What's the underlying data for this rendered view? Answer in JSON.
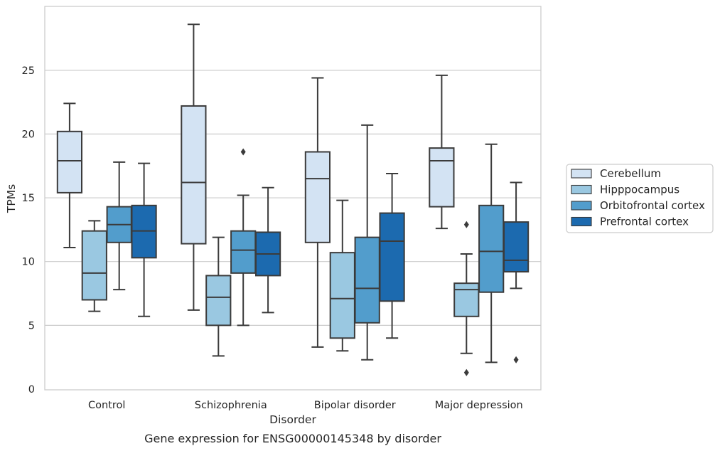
{
  "caption": "Gene expression for ENSG00000145348 by disorder",
  "chart_data": {
    "type": "box",
    "title": "",
    "xlabel": "Disorder",
    "ylabel": "TPMs",
    "ylim": [
      0,
      30
    ],
    "yticks": [
      0,
      5,
      10,
      15,
      20,
      25
    ],
    "grid": "horizontal",
    "legend_position": "right-outside",
    "categories": [
      "Control",
      "Schizophrenia",
      "Bipolar disorder",
      "Major depression"
    ],
    "series": [
      {
        "name": "Cerebellum",
        "color": "#d3e3f3",
        "boxes": [
          {
            "whislo": 11.1,
            "q1": 15.4,
            "med": 17.9,
            "q3": 20.2,
            "whishi": 22.4,
            "fliers": []
          },
          {
            "whislo": 6.2,
            "q1": 11.4,
            "med": 16.2,
            "q3": 22.2,
            "whishi": 28.6,
            "fliers": []
          },
          {
            "whislo": 3.3,
            "q1": 11.5,
            "med": 16.5,
            "q3": 18.6,
            "whishi": 24.4,
            "fliers": []
          },
          {
            "whislo": 12.6,
            "q1": 14.3,
            "med": 17.9,
            "q3": 18.9,
            "whishi": 24.6,
            "fliers": []
          }
        ]
      },
      {
        "name": "Hipppocampus",
        "color": "#9ac8e1",
        "boxes": [
          {
            "whislo": 6.1,
            "q1": 7.0,
            "med": 9.1,
            "q3": 12.4,
            "whishi": 13.2,
            "fliers": []
          },
          {
            "whislo": 2.6,
            "q1": 5.0,
            "med": 7.2,
            "q3": 8.9,
            "whishi": 11.9,
            "fliers": []
          },
          {
            "whislo": 3.0,
            "q1": 4.0,
            "med": 7.1,
            "q3": 10.7,
            "whishi": 14.8,
            "fliers": []
          },
          {
            "whislo": 2.8,
            "q1": 5.7,
            "med": 7.8,
            "q3": 8.3,
            "whishi": 10.6,
            "fliers": [
              1.3,
              12.9
            ]
          }
        ]
      },
      {
        "name": "Orbitofrontal cortex",
        "color": "#529dcc",
        "boxes": [
          {
            "whislo": 7.8,
            "q1": 11.5,
            "med": 12.9,
            "q3": 14.3,
            "whishi": 17.8,
            "fliers": []
          },
          {
            "whislo": 5.0,
            "q1": 9.1,
            "med": 10.9,
            "q3": 12.4,
            "whishi": 15.2,
            "fliers": [
              18.6
            ]
          },
          {
            "whislo": 2.3,
            "q1": 5.2,
            "med": 7.9,
            "q3": 11.9,
            "whishi": 20.7,
            "fliers": []
          },
          {
            "whislo": 2.1,
            "q1": 7.6,
            "med": 10.8,
            "q3": 14.4,
            "whishi": 19.2,
            "fliers": []
          }
        ]
      },
      {
        "name": "Prefrontal cortex",
        "color": "#1c6aaf",
        "boxes": [
          {
            "whislo": 5.7,
            "q1": 10.3,
            "med": 12.4,
            "q3": 14.4,
            "whishi": 17.7,
            "fliers": []
          },
          {
            "whislo": 6.0,
            "q1": 8.9,
            "med": 10.6,
            "q3": 12.3,
            "whishi": 15.8,
            "fliers": []
          },
          {
            "whislo": 4.0,
            "q1": 6.9,
            "med": 11.6,
            "q3": 13.8,
            "whishi": 16.9,
            "fliers": []
          },
          {
            "whislo": 7.9,
            "q1": 9.2,
            "med": 10.1,
            "q3": 13.1,
            "whishi": 16.2,
            "fliers": [
              2.3
            ]
          }
        ]
      }
    ]
  }
}
